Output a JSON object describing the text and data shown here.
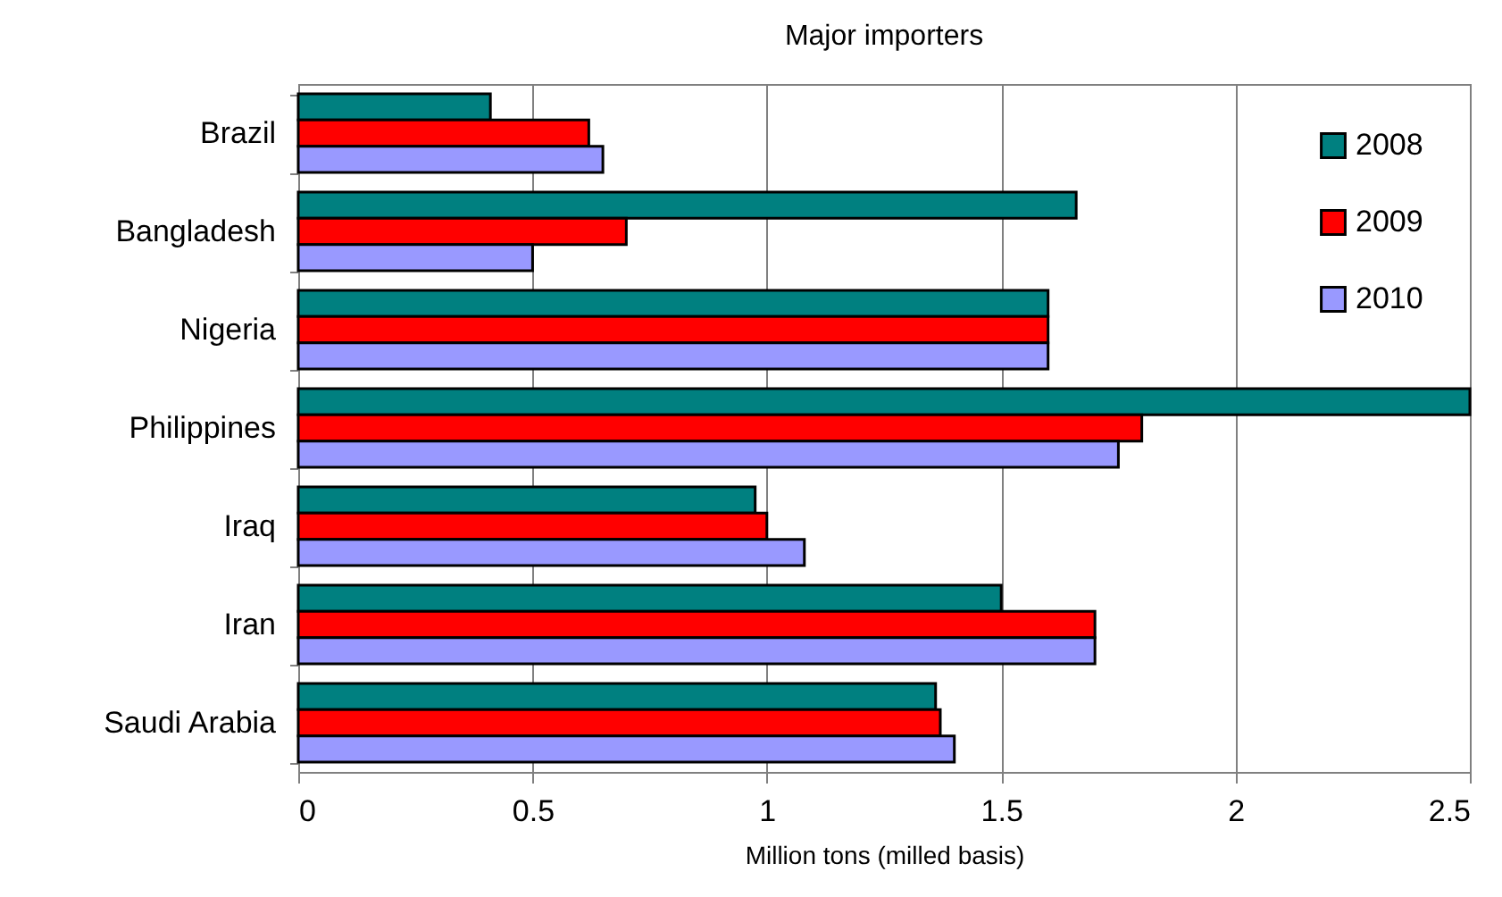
{
  "chart_data": {
    "type": "bar",
    "orientation": "horizontal",
    "title": "Major importers",
    "xlabel": "Million tons (milled basis)",
    "categories": [
      "Brazil",
      "Bangladesh",
      "Nigeria",
      "Philippines",
      "Iraq",
      "Iran",
      "Saudi Arabia"
    ],
    "series": [
      {
        "name": "2008",
        "color": "#008080",
        "values": [
          0.41,
          1.66,
          1.6,
          2.5,
          0.975,
          1.5,
          1.36
        ]
      },
      {
        "name": "2009",
        "color": "#ff0000",
        "values": [
          0.62,
          0.7,
          1.6,
          1.8,
          1.0,
          1.7,
          1.37
        ]
      },
      {
        "name": "2010",
        "color": "#9999ff",
        "values": [
          0.65,
          0.5,
          1.6,
          1.75,
          1.08,
          1.7,
          1.4
        ]
      }
    ],
    "xlim": [
      0,
      2.5
    ],
    "xticks": [
      0,
      0.5,
      1,
      1.5,
      2,
      2.5
    ],
    "grid": "x",
    "legend": "top right"
  }
}
